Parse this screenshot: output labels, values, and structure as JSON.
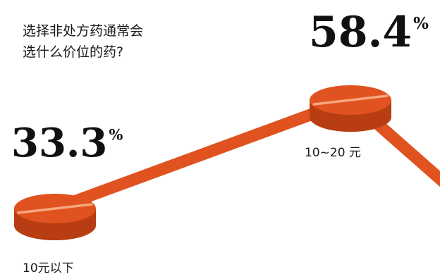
{
  "chart_data": {
    "type": "line",
    "title": [
      "选择非处方药通常会",
      "选什么价位的药?"
    ],
    "categories": [
      "10元以下",
      "10~20 元"
    ],
    "values": [
      33.3,
      58.4
    ],
    "value_labels": [
      "33.3%",
      "58.4%"
    ],
    "marker": "pill",
    "trend_continues": "down",
    "colors": {
      "pill": "#e0521f",
      "pill_dark": "#b83d12",
      "highlight": "#f7a77f",
      "line": "#e0521f",
      "text": "#111111"
    }
  }
}
